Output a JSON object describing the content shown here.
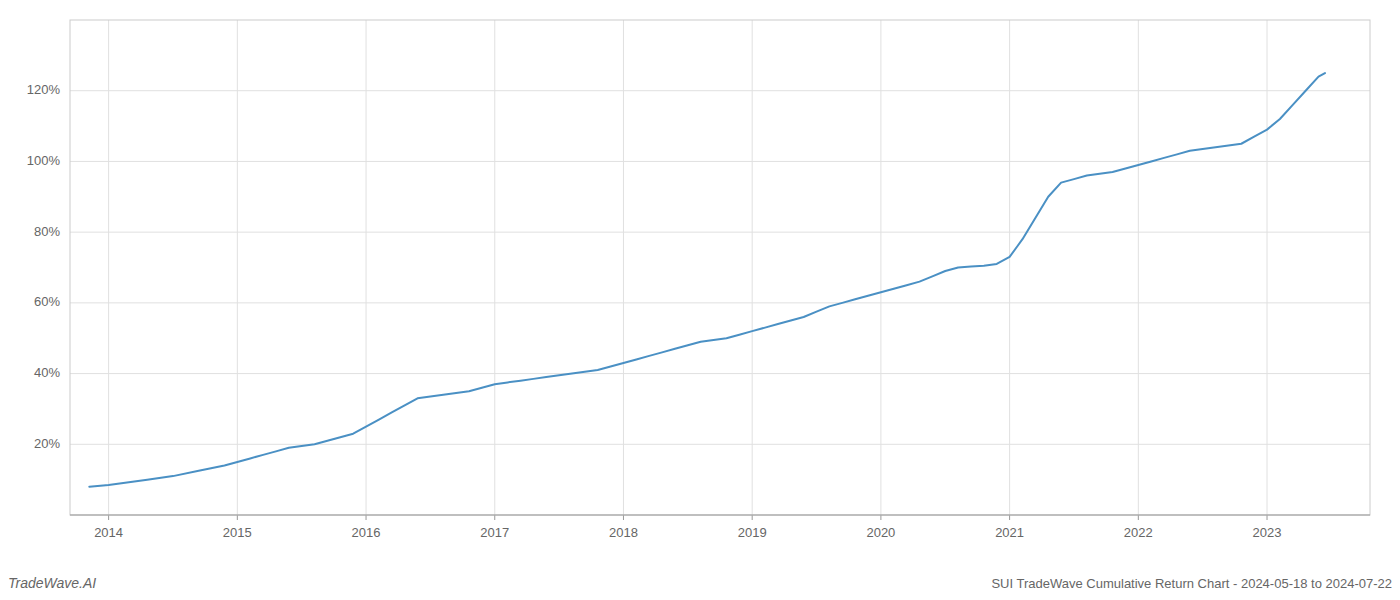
{
  "chart_data": {
    "type": "line",
    "title": "SUI TradeWave Cumulative Return Chart - 2024-05-18 to 2024-07-22",
    "annotations": [
      "TradeWave.AI"
    ],
    "color": "#4a90c4",
    "grid": true,
    "x": [
      2013.85,
      2014.0,
      2014.1,
      2014.2,
      2014.3,
      2014.5,
      2014.7,
      2014.9,
      2015.0,
      2015.1,
      2015.2,
      2015.3,
      2015.4,
      2015.5,
      2015.6,
      2015.7,
      2015.8,
      2015.9,
      2016.0,
      2016.1,
      2016.2,
      2016.3,
      2016.4,
      2016.5,
      2016.6,
      2016.7,
      2016.8,
      2016.9,
      2017.0,
      2017.1,
      2017.2,
      2017.3,
      2017.4,
      2017.5,
      2017.6,
      2017.7,
      2017.8,
      2017.9,
      2018.0,
      2018.1,
      2018.2,
      2018.3,
      2018.4,
      2018.5,
      2018.6,
      2018.7,
      2018.8,
      2018.9,
      2019.0,
      2019.1,
      2019.2,
      2019.3,
      2019.4,
      2019.5,
      2019.6,
      2019.7,
      2019.8,
      2019.9,
      2020.0,
      2020.1,
      2020.2,
      2020.3,
      2020.4,
      2020.5,
      2020.6,
      2020.7,
      2020.8,
      2020.9,
      2021.0,
      2021.1,
      2021.2,
      2021.3,
      2021.4,
      2021.5,
      2021.6,
      2021.7,
      2021.8,
      2021.9,
      2022.0,
      2022.1,
      2022.2,
      2022.3,
      2022.4,
      2022.5,
      2022.6,
      2022.7,
      2022.8,
      2022.9,
      2023.0,
      2023.1,
      2023.2,
      2023.3,
      2023.4,
      2023.45
    ],
    "values": [
      8,
      8.5,
      9,
      9.5,
      10,
      11,
      12.5,
      14,
      15,
      16,
      17,
      18,
      19,
      19.5,
      20,
      21,
      22,
      23,
      25,
      27,
      29,
      31,
      33,
      33.5,
      34,
      34.5,
      35,
      36,
      37,
      37.5,
      38,
      38.5,
      39,
      39.5,
      40,
      40.5,
      41,
      42,
      43,
      44,
      45,
      46,
      47,
      48,
      49,
      49.5,
      50,
      51,
      52,
      53,
      54,
      55,
      56,
      57.5,
      59,
      60,
      61,
      62,
      63,
      64,
      65,
      66,
      67.5,
      69,
      70,
      70.3,
      70.5,
      71,
      73,
      78,
      84,
      90,
      94,
      95,
      96,
      96.5,
      97,
      98,
      99,
      100,
      101,
      102,
      103,
      103.5,
      104,
      104.5,
      105,
      107,
      109,
      112,
      116,
      120,
      124,
      125
    ],
    "xlim": [
      2013.7,
      2023.8
    ],
    "xticks": [
      2014,
      2015,
      2016,
      2017,
      2018,
      2019,
      2020,
      2021,
      2022,
      2023
    ],
    "ylim": [
      0,
      140
    ],
    "yticks": [
      {
        "value": 20,
        "label": "20%"
      },
      {
        "value": 40,
        "label": "40%"
      },
      {
        "value": 60,
        "label": "60%"
      },
      {
        "value": 80,
        "label": "80%"
      },
      {
        "value": 100,
        "label": "100%"
      },
      {
        "value": 120,
        "label": "120%"
      }
    ]
  }
}
